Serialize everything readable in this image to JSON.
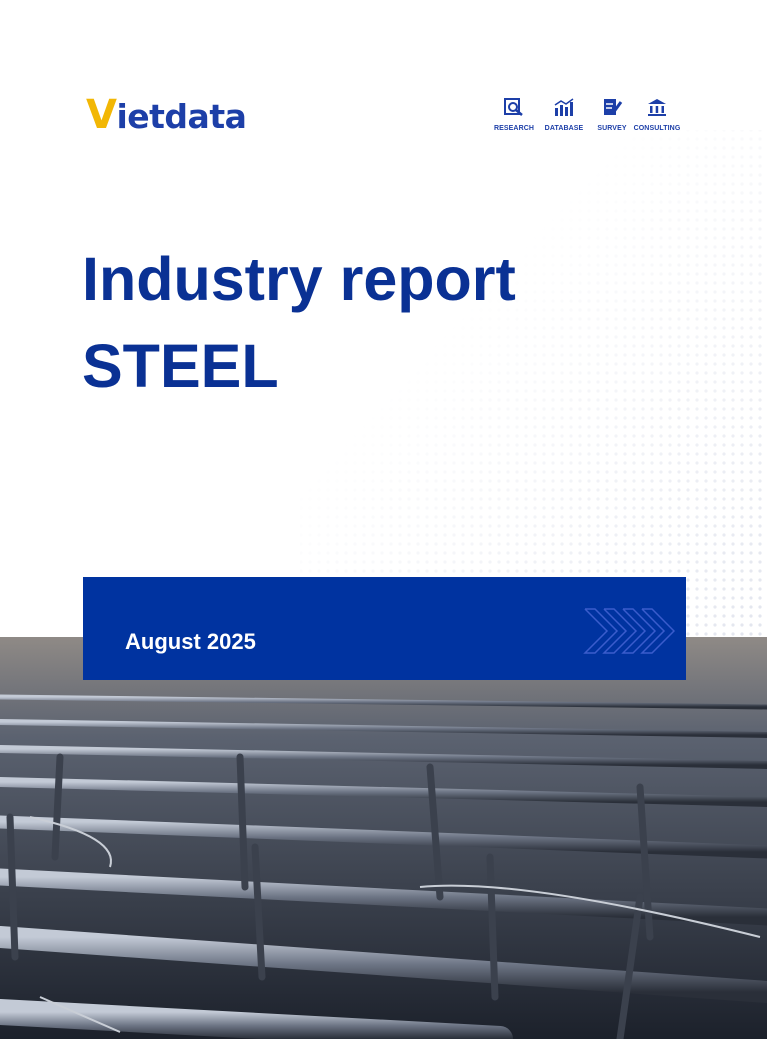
{
  "header": {
    "logo": "Vietdata",
    "nav": [
      "RESEARCH",
      "DATABASE",
      "SURVEY",
      "CONSULTING"
    ]
  },
  "title": {
    "line1": "Industry report",
    "line2": "STEEL"
  },
  "date": "August 2025"
}
